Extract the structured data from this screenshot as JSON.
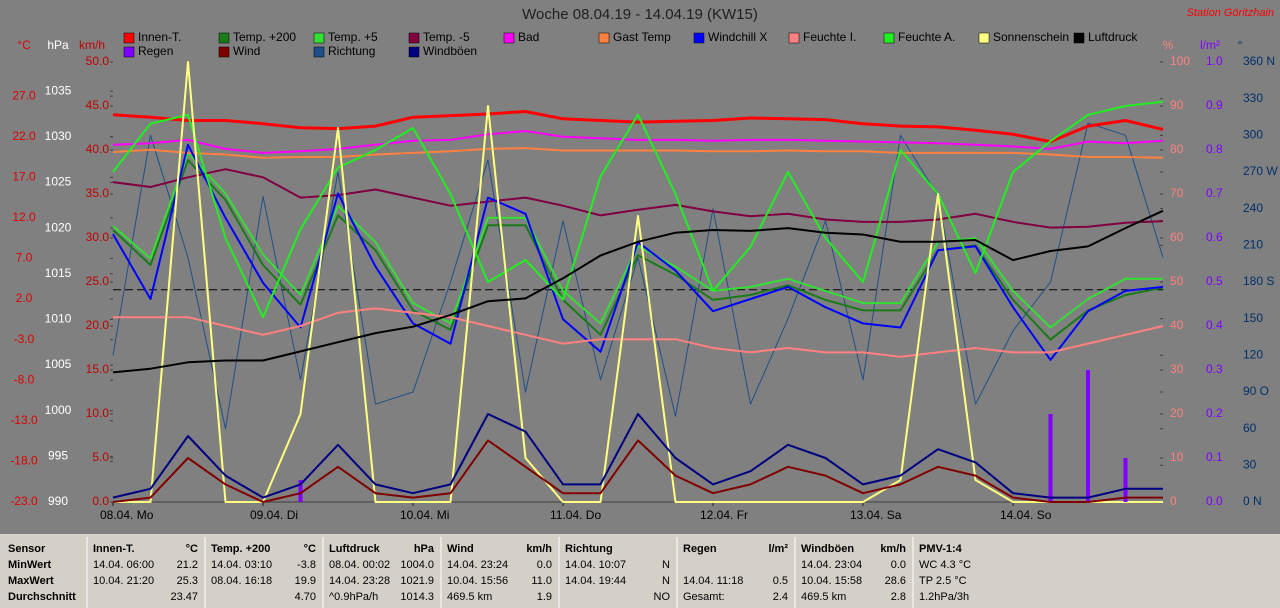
{
  "chart_data": {
    "type": "line",
    "title": "Woche 08.04.19 - 14.04.19 (KW15)",
    "station": "Station Göritzhain",
    "x": [
      0,
      6,
      12,
      18,
      24,
      30,
      36,
      42,
      48,
      54,
      60,
      66,
      72,
      78,
      84,
      90,
      96,
      102,
      108,
      114,
      120,
      126,
      132,
      138,
      144,
      150,
      156,
      162,
      168
    ],
    "xlim": [
      0,
      168
    ],
    "xticks": [
      {
        "value": 0,
        "label": "08.04. Mo"
      },
      {
        "value": 24,
        "label": "09.04. Di"
      },
      {
        "value": 48,
        "label": "10.04. Mi"
      },
      {
        "value": 72,
        "label": "11.04. Do"
      },
      {
        "value": 96,
        "label": "12.04. Fr"
      },
      {
        "value": 120,
        "label": "13.04. Sa"
      },
      {
        "value": 144,
        "label": "14.04. So"
      }
    ],
    "axes": [
      {
        "label": "°C",
        "color": "#e00000",
        "lim": [
          -23,
          31.2
        ],
        "ticks": [
          {
            "value": 27,
            "label": "27.0"
          },
          {
            "value": 22,
            "label": "22.0"
          },
          {
            "value": 17,
            "label": "17.0"
          },
          {
            "value": 12,
            "label": "12.0"
          },
          {
            "value": 7,
            "label": "7.0"
          },
          {
            "value": 2,
            "label": "2.0"
          },
          {
            "value": -3,
            "label": "-3.0"
          },
          {
            "value": -8,
            "label": "-8.0"
          },
          {
            "value": -13,
            "label": "-13.0"
          },
          {
            "value": -18,
            "label": "-18.0"
          },
          {
            "value": -23,
            "label": "-23.0"
          }
        ]
      },
      {
        "label": "hPa",
        "color": "#ffffff",
        "lim": [
          990,
          1038.2
        ],
        "ticks": [
          1035,
          1030,
          1025,
          1020,
          1015,
          1010,
          1005,
          1000,
          995,
          990
        ]
      },
      {
        "label": "km/h",
        "color": "#c00000",
        "lim": [
          0,
          50
        ],
        "ticks": [
          {
            "value": 50,
            "label": "50.0"
          },
          {
            "value": 45,
            "label": "45.0"
          },
          {
            "value": 40,
            "label": "40.0"
          },
          {
            "value": 35,
            "label": "35.0"
          },
          {
            "value": 30,
            "label": "30.0"
          },
          {
            "value": 25,
            "label": "25.0"
          },
          {
            "value": 20,
            "label": "20.0"
          },
          {
            "value": 15,
            "label": "15.0"
          },
          {
            "value": 10,
            "label": "10.0"
          },
          {
            "value": 5,
            "label": "5.0"
          },
          {
            "value": 0,
            "label": "0.0"
          }
        ]
      },
      {
        "label": "%",
        "color": "#ff8080",
        "lim": [
          0,
          100
        ],
        "ticks": [
          100,
          90,
          80,
          70,
          60,
          50,
          40,
          30,
          20,
          10,
          0
        ]
      },
      {
        "label": "l/m²",
        "color": "#8000ff",
        "lim": [
          0,
          1
        ],
        "ticks": [
          {
            "value": 1,
            "label": "1.0"
          },
          0.9,
          0.8,
          0.7,
          0.6,
          0.5,
          0.4,
          0.3,
          0.2,
          0.1,
          {
            "value": 0,
            "label": "0.0"
          }
        ]
      },
      {
        "label": "°",
        "color": "#00306a",
        "lim": [
          0,
          360
        ],
        "ticks": [
          {
            "value": 360,
            "label": "360 N"
          },
          330,
          300,
          {
            "value": 270,
            "label": "270 W"
          },
          240,
          210,
          {
            "value": 180,
            "label": "180 S"
          },
          150,
          120,
          {
            "value": 90,
            "label": "90 O"
          },
          60,
          30,
          {
            "value": 0,
            "label": "0 N"
          }
        ]
      }
    ],
    "reference_lines": [
      {
        "axis": 1,
        "value": 1013.25
      }
    ],
    "series": [
      {
        "name": "Innen-T.",
        "color": "#ff0000",
        "axis": 0,
        "values": [
          24.7,
          24.4,
          24.0,
          24.0,
          23.6,
          23.1,
          23.0,
          23.3,
          24.4,
          24.6,
          24.8,
          25.1,
          24.2,
          24.0,
          23.8,
          23.9,
          24.0,
          24.3,
          24.2,
          24.1,
          23.6,
          23.3,
          23.2,
          22.8,
          22.3,
          21.4,
          23.3,
          24.0,
          22.9
        ]
      },
      {
        "name": "Temp. +200",
        "color": "#1a7a1a",
        "axis": 0,
        "values": [
          10.5,
          6.2,
          19.1,
          14.2,
          6.2,
          1.3,
          12.3,
          8.0,
          0.6,
          -1.8,
          11.1,
          11.1,
          1.9,
          -2.4,
          7.4,
          5.0,
          1.9,
          2.5,
          3.7,
          1.9,
          0.6,
          0.6,
          8.0,
          8.6,
          1.9,
          -3.0,
          0.6,
          2.5,
          3.4
        ]
      },
      {
        "name": "Temp. +5",
        "color": "#33e033",
        "axis": 0,
        "values": [
          11.0,
          7.0,
          20.0,
          15.0,
          7.5,
          2.5,
          13.5,
          9.0,
          1.5,
          -1.0,
          12.0,
          12.0,
          3.0,
          -1.0,
          8.5,
          6.0,
          3.0,
          3.5,
          4.5,
          3.0,
          1.5,
          1.5,
          9.0,
          9.5,
          3.0,
          -1.5,
          2.0,
          4.5,
          4.5
        ]
      },
      {
        "name": "Temp. -5",
        "color": "#800040",
        "axis": 0,
        "values": [
          16.4,
          15.8,
          17.0,
          18.0,
          17.0,
          14.5,
          14.8,
          15.5,
          14.5,
          13.5,
          14.0,
          14.5,
          13.5,
          12.3,
          13.0,
          13.6,
          12.8,
          12.2,
          12.5,
          11.8,
          11.5,
          11.5,
          11.8,
          12.5,
          11.5,
          10.8,
          10.9,
          11.4,
          11.6
        ]
      },
      {
        "name": "Bad",
        "color": "#ff00ff",
        "axis": 0,
        "values": [
          21.0,
          21.2,
          21.6,
          20.5,
          20.0,
          20.2,
          20.5,
          21.0,
          21.5,
          21.6,
          22.3,
          22.7,
          22.0,
          21.8,
          21.6,
          21.6,
          21.5,
          21.6,
          21.6,
          21.5,
          21.4,
          21.3,
          21.2,
          21.0,
          20.8,
          20.5,
          21.4,
          21.2,
          21.5
        ]
      },
      {
        "name": "Gast Temp",
        "color": "#ff8040",
        "axis": 0,
        "values": [
          20.1,
          20.4,
          20.0,
          19.8,
          19.4,
          19.5,
          19.5,
          19.8,
          20.0,
          20.2,
          20.5,
          20.6,
          20.3,
          20.3,
          20.3,
          20.3,
          20.2,
          20.2,
          20.3,
          20.2,
          20.2,
          20.0,
          20.0,
          20.0,
          20.0,
          19.8,
          19.5,
          19.5,
          19.4
        ]
      },
      {
        "name": "Windchill X",
        "color": "#0000ff",
        "axis": 0,
        "values": [
          10.0,
          2.0,
          21.0,
          12.0,
          4.0,
          -1.5,
          15.0,
          6.0,
          -1.0,
          -3.5,
          14.5,
          12.5,
          -0.5,
          -4.5,
          9.0,
          5.5,
          0.5,
          2.0,
          3.5,
          1.0,
          -1.0,
          -1.5,
          8.0,
          8.5,
          1.0,
          -5.5,
          0.5,
          3.0,
          3.5
        ]
      },
      {
        "name": "Feuchte I.",
        "color": "#ff8080",
        "axis": 3,
        "values": [
          42,
          42,
          42,
          40,
          38,
          40,
          43,
          44,
          43,
          42,
          40,
          38,
          36,
          37,
          37,
          37,
          35,
          34,
          35,
          34,
          34,
          33,
          34,
          35,
          34,
          34,
          36,
          38,
          40
        ]
      },
      {
        "name": "Feuchte A.",
        "color": "#20f020",
        "axis": 3,
        "values": [
          75,
          86,
          88,
          60,
          42,
          62,
          76,
          80,
          85,
          70,
          50,
          55,
          46,
          74,
          88,
          70,
          48,
          58,
          75,
          60,
          50,
          80,
          70,
          52,
          75,
          82,
          88,
          90,
          91
        ]
      },
      {
        "name": "Sonnenschein",
        "color": "#ffff80",
        "axis": 3,
        "values": [
          0,
          0,
          100,
          0,
          0,
          20,
          85,
          0,
          0,
          0,
          90,
          10,
          0,
          0,
          65,
          0,
          0,
          0,
          0,
          0,
          0,
          5,
          70,
          5,
          0,
          0,
          0,
          0,
          0
        ]
      },
      {
        "name": "Luftdruck",
        "color": "#000000",
        "axis": 1,
        "values": [
          1004.2,
          1004.6,
          1005.3,
          1005.5,
          1005.5,
          1006.5,
          1007.5,
          1008.5,
          1009.2,
          1010.5,
          1012.0,
          1012.3,
          1014.5,
          1017.0,
          1018.5,
          1019.5,
          1019.8,
          1019.7,
          1020.0,
          1019.5,
          1019.3,
          1018.5,
          1018.5,
          1018.7,
          1016.5,
          1017.5,
          1018.0,
          1020.0,
          1021.9
        ]
      },
      {
        "name": "Regen",
        "color": "#8000ff",
        "axis": 4,
        "kind": "bar",
        "values": [
          0,
          0,
          0,
          0,
          0,
          0.05,
          0,
          0,
          0,
          0,
          0,
          0,
          0,
          0,
          0,
          0,
          0,
          0,
          0,
          0,
          0,
          0,
          0,
          0,
          0,
          0.2,
          0.3,
          0.1,
          0
        ]
      },
      {
        "name": "Wind",
        "color": "#800000",
        "axis": 2,
        "values": [
          0,
          0.5,
          5,
          2,
          0,
          1,
          4,
          1,
          0.5,
          1,
          7,
          4,
          1,
          1,
          7,
          3,
          1,
          2,
          4,
          3,
          1,
          2,
          4,
          3,
          0.5,
          0,
          0,
          0.5,
          0.5
        ]
      },
      {
        "name": "Richtung",
        "color": "#1f4f88",
        "axis": 5,
        "values": [
          120,
          300,
          200,
          60,
          250,
          100,
          270,
          80,
          90,
          180,
          280,
          90,
          230,
          100,
          200,
          70,
          240,
          80,
          150,
          230,
          100,
          300,
          250,
          80,
          140,
          180,
          310,
          300,
          200
        ]
      },
      {
        "name": "Windböen",
        "color": "#000080",
        "axis": 2,
        "values": [
          0.5,
          1.5,
          7.5,
          3,
          0.5,
          2,
          6.5,
          2,
          1,
          2,
          10,
          8,
          2,
          2,
          10,
          5,
          2,
          3.5,
          6.5,
          5,
          2,
          3,
          6,
          4.5,
          1,
          0.5,
          0.5,
          1.5,
          1.5
        ]
      }
    ]
  },
  "stats_table": {
    "row_labels": [
      "Sensor",
      "MinWert",
      "MaxWert",
      "Durchschnitt"
    ],
    "columns": [
      {
        "title": "Innen-T.",
        "unit": "°C",
        "rows": [
          [
            "14.04. 06:00",
            "21.2"
          ],
          [
            "10.04. 21:20",
            "25.3"
          ],
          [
            "23.47"
          ]
        ]
      },
      {
        "title": "Temp. +200",
        "unit": "°C",
        "rows": [
          [
            "14.04. 03:10",
            "-3.8"
          ],
          [
            "08.04. 16:18",
            "19.9"
          ],
          [
            "4.70"
          ]
        ]
      },
      {
        "title": "Luftdruck",
        "unit": "hPa",
        "rows": [
          [
            "08.04. 00:02",
            "1004.0"
          ],
          [
            "14.04. 23:28",
            "1021.9"
          ],
          [
            "^0.9hPa/h",
            "1014.3"
          ]
        ]
      },
      {
        "title": "Wind",
        "unit": "km/h",
        "rows": [
          [
            "14.04. 23:24",
            "0.0"
          ],
          [
            "10.04. 15:56",
            "11.0"
          ],
          [
            "469.5 km",
            "1.9"
          ]
        ]
      },
      {
        "title": "Richtung",
        "rows": [
          [
            "14.04. 10:07",
            "N"
          ],
          [
            "14.04. 19:44",
            "N"
          ],
          [
            "NO"
          ]
        ]
      },
      {
        "title": "Regen",
        "unit": "l/m²",
        "rows": [
          [],
          [
            "14.04. 11:18",
            "0.5"
          ],
          [
            "Gesamt:",
            "2.4"
          ]
        ]
      },
      {
        "title": "Windböen",
        "unit": "km/h",
        "rows": [
          [
            "14.04. 23:04",
            "0.0"
          ],
          [
            "10.04. 15:58",
            "28.6"
          ],
          [
            "469.5 km",
            "2.8"
          ]
        ]
      },
      {
        "title": "PMV-1:4",
        "rows": [
          [
            "WC 4.3 °C"
          ],
          [
            "TP 2.5 °C"
          ],
          [
            "1.2hPa/3h"
          ]
        ]
      }
    ]
  }
}
